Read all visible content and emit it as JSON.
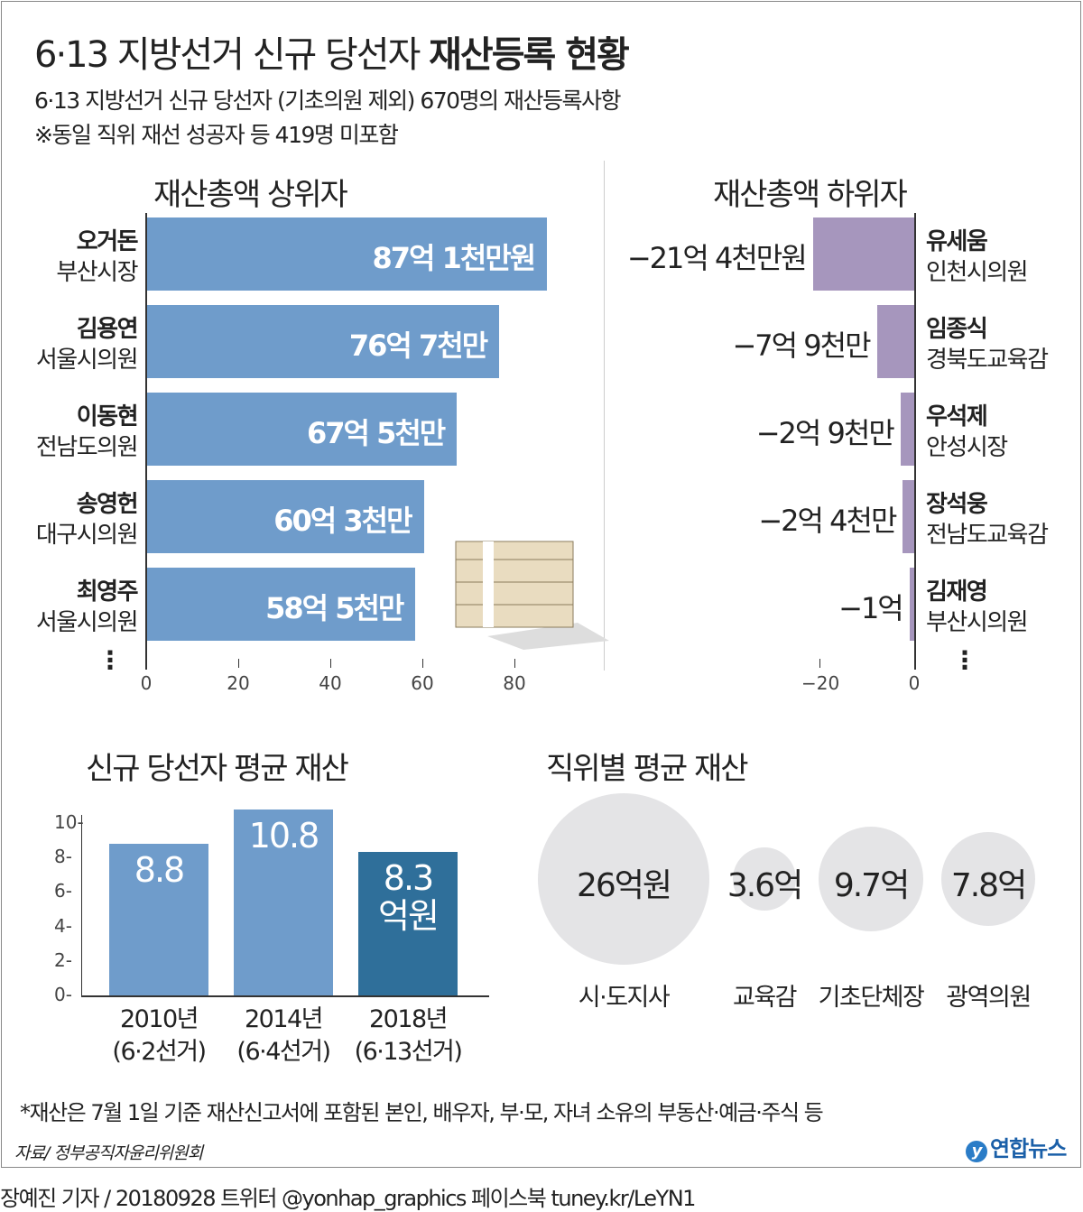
{
  "header": {
    "title_light": "6·13 지방선거 신규 당선자 ",
    "title_bold": "재산등록 현황",
    "subtitle": "6·13 지방선거 신규 당선자 (기초의원 제외) 670명의 재산등록사항",
    "note": "※동일 직위 재선 성공자 등 419명 미포함"
  },
  "chart_data": [
    {
      "type": "bar",
      "orientation": "horizontal",
      "title": "재산총액 상위자",
      "unit": "억원",
      "xlim": [
        0,
        90
      ],
      "ticks": [
        0,
        20,
        40,
        60,
        80
      ],
      "color": "#6f9ccb",
      "items": [
        {
          "name": "오거돈",
          "role": "부산시장",
          "value": 87.1,
          "label": "87억 1천만원"
        },
        {
          "name": "김용연",
          "role": "서울시의원",
          "value": 76.7,
          "label": "76억 7천만"
        },
        {
          "name": "이동현",
          "role": "전남도의원",
          "value": 67.5,
          "label": "67억 5천만"
        },
        {
          "name": "송영헌",
          "role": "대구시의원",
          "value": 60.3,
          "label": "60억 3천만"
        },
        {
          "name": "최영주",
          "role": "서울시의원",
          "value": 58.5,
          "label": "58억 5천만"
        }
      ],
      "more": "⋮"
    },
    {
      "type": "bar",
      "orientation": "horizontal",
      "title": "재산총액 하위자",
      "unit": "억원",
      "xlim": [
        -22,
        0
      ],
      "ticks": [
        -20,
        0
      ],
      "tick_labels": [
        "−20",
        "0"
      ],
      "color": "#a696bd",
      "items": [
        {
          "name": "유세움",
          "role": "인천시의원",
          "value": -21.4,
          "label": "−21억 4천만원"
        },
        {
          "name": "임종식",
          "role": "경북도교육감",
          "value": -7.9,
          "label": "−7억 9천만"
        },
        {
          "name": "우석제",
          "role": "안성시장",
          "value": -2.9,
          "label": "−2억 9천만"
        },
        {
          "name": "장석웅",
          "role": "전남도교육감",
          "value": -2.4,
          "label": "−2억 4천만"
        },
        {
          "name": "김재영",
          "role": "부산시의원",
          "value": -1,
          "label": "−1억"
        }
      ],
      "more": "⋮"
    },
    {
      "type": "bar",
      "title": "신규 당선자 평균 재산",
      "unit": "억원",
      "ylim": [
        0,
        10
      ],
      "yticks": [
        0,
        2,
        4,
        6,
        8,
        10
      ],
      "categories": [
        "2010년\n(6·2선거)",
        "2014년\n(6·4선거)",
        "2018년\n(6·13선거)"
      ],
      "values": [
        8.8,
        10.8,
        8.3
      ],
      "labels": [
        "8.8",
        "10.8",
        "8.3\n억원"
      ],
      "colors": [
        "#6f9ccb",
        "#6f9ccb",
        "#2f6f9a"
      ]
    },
    {
      "type": "bubble",
      "title": "직위별 평균 재산",
      "categories": [
        "시·도지사",
        "교육감",
        "기초단체장",
        "광역의원"
      ],
      "values": [
        26,
        3.6,
        9.7,
        7.8
      ],
      "labels": [
        "26억원",
        "3.6억",
        "9.7억",
        "7.8억"
      ],
      "color": "#e4e4e6"
    }
  ],
  "footer": {
    "note": "*재산은 7월 1일 기준 재산신고서에 포함된 본인, 배우자, 부·모, 자녀 소유의 부동산·예금·주식 등",
    "source": "자료/ 정부공직자윤리위원회",
    "logo": "연합뉴스",
    "credit": "장예진 기자 / 20180928 트위터 @yonhap_graphics  페이스북 tuney.kr/LeYN1"
  }
}
